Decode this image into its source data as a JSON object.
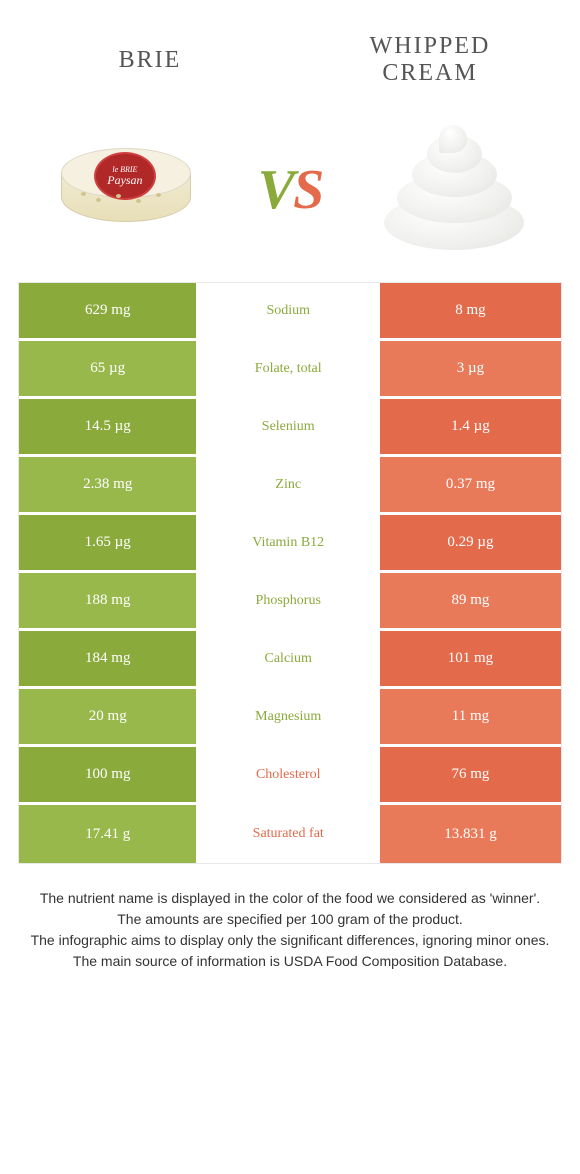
{
  "colors": {
    "green": "#8aaa3b",
    "green_light": "#98b84b",
    "orange": "#e36a4a",
    "orange_light": "#e87a5a"
  },
  "header": {
    "left": "Brie",
    "right": "Whipped Cream"
  },
  "vs": {
    "left": "V",
    "right": "S"
  },
  "rows": [
    {
      "left": "629 mg",
      "label": "Sodium",
      "right": "8 mg",
      "winner": "green",
      "shade": "dark"
    },
    {
      "left": "65 µg",
      "label": "Folate, total",
      "right": "3 µg",
      "winner": "green",
      "shade": "light"
    },
    {
      "left": "14.5 µg",
      "label": "Selenium",
      "right": "1.4 µg",
      "winner": "green",
      "shade": "dark"
    },
    {
      "left": "2.38 mg",
      "label": "Zinc",
      "right": "0.37 mg",
      "winner": "green",
      "shade": "light"
    },
    {
      "left": "1.65 µg",
      "label": "Vitamin B12",
      "right": "0.29 µg",
      "winner": "green",
      "shade": "dark"
    },
    {
      "left": "188 mg",
      "label": "Phosphorus",
      "right": "89 mg",
      "winner": "green",
      "shade": "light"
    },
    {
      "left": "184 mg",
      "label": "Calcium",
      "right": "101 mg",
      "winner": "green",
      "shade": "dark"
    },
    {
      "left": "20 mg",
      "label": "Magnesium",
      "right": "11 mg",
      "winner": "green",
      "shade": "light"
    },
    {
      "left": "100 mg",
      "label": "Cholesterol",
      "right": "76 mg",
      "winner": "orange",
      "shade": "dark"
    },
    {
      "left": "17.41 g",
      "label": "Saturated fat",
      "right": "13.831 g",
      "winner": "orange",
      "shade": "light"
    }
  ],
  "footnotes": [
    "The nutrient name is displayed in the color of the food we considered as 'winner'.",
    "The amounts are specified per 100 gram of the product.",
    "The infographic aims to display only the significant differences, ignoring minor ones.",
    "The main source of information is USDA Food Composition Database."
  ],
  "brie_label": {
    "line1": "le BRIE",
    "line2": "Paysan"
  }
}
